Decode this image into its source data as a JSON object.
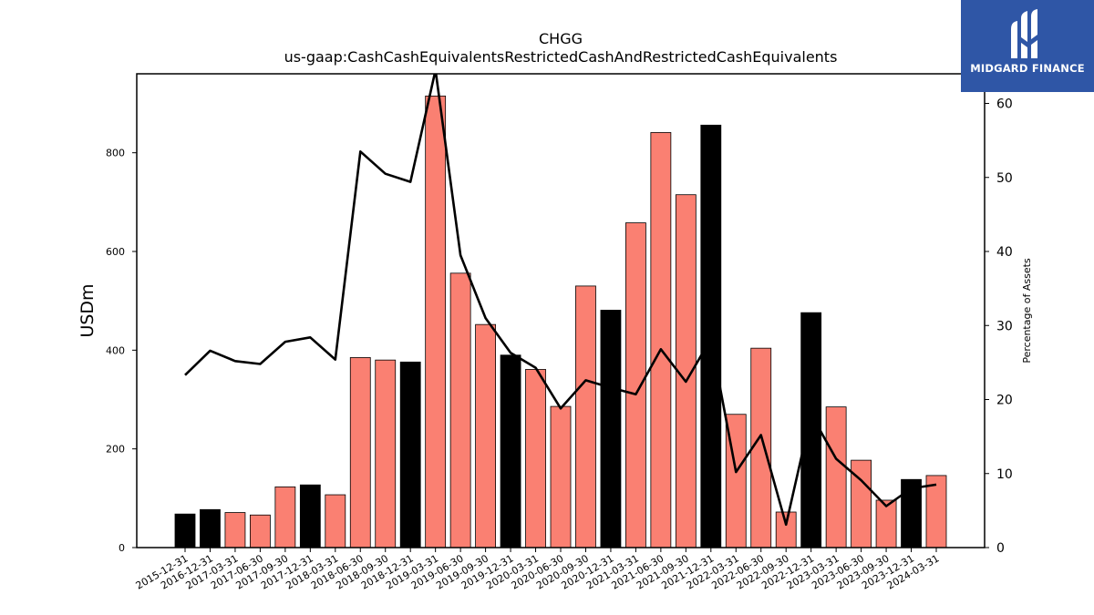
{
  "chart_data": {
    "type": "bar+line",
    "title": "CHGG",
    "subtitle": "us-gaap:CashCashEquivalentsRestrictedCashAndRestrictedCashEquivalents",
    "ylabel": "USDm",
    "y2label": "Percentage of Assets",
    "ylim": [
      0,
      960
    ],
    "y2lim": [
      0,
      64
    ],
    "yticks": [
      0,
      200,
      400,
      600,
      800
    ],
    "y2ticks": [
      0,
      10,
      20,
      30,
      40,
      50,
      60
    ],
    "categories": [
      "2015-12-31",
      "2016-12-31",
      "2017-03-31",
      "2017-06-30",
      "2017-09-30",
      "2017-12-31",
      "2018-03-31",
      "2018-06-30",
      "2018-09-30",
      "2018-12-31",
      "2019-03-31",
      "2019-06-30",
      "2019-09-30",
      "2019-12-31",
      "2020-03-31",
      "2020-06-30",
      "2020-09-30",
      "2020-12-31",
      "2021-03-31",
      "2021-06-30",
      "2021-09-30",
      "2021-12-31",
      "2022-03-31",
      "2022-06-30",
      "2022-09-30",
      "2022-12-31",
      "2023-03-31",
      "2023-06-30",
      "2023-09-30",
      "2023-12-31",
      "2024-03-31"
    ],
    "series": [
      {
        "type": "bar",
        "values": [
          68,
          77,
          71,
          66,
          123,
          127,
          107,
          385,
          380,
          376,
          915,
          556,
          452,
          390,
          361,
          286,
          530,
          481,
          658,
          841,
          715,
          856,
          270,
          404,
          72,
          476,
          285,
          177,
          96,
          138,
          146
        ],
        "annual_flags": [
          true,
          true,
          false,
          false,
          false,
          true,
          false,
          false,
          false,
          true,
          false,
          false,
          false,
          true,
          false,
          false,
          false,
          true,
          false,
          false,
          false,
          true,
          false,
          false,
          false,
          true,
          false,
          false,
          false,
          true,
          false
        ]
      },
      {
        "type": "line",
        "axis": "right",
        "values": [
          23.3,
          26.6,
          25.2,
          24.8,
          27.8,
          28.4,
          25.4,
          53.5,
          50.5,
          49.4,
          64.5,
          39.5,
          31.0,
          26.3,
          24.3,
          18.8,
          22.6,
          21.6,
          20.7,
          26.8,
          22.4,
          28.2,
          10.2,
          15.2,
          3.1,
          18.0,
          12.0,
          9.1,
          5.6,
          8.0,
          8.5
        ]
      }
    ],
    "colors": {
      "annual_bar": "#000000",
      "quarter_bar": "#fa8072",
      "line": "#000000"
    },
    "grid": false
  },
  "branding": {
    "name": "MIDGARD FINANCE",
    "icon": "midgard-logo-icon",
    "background": "#2f56a6"
  }
}
